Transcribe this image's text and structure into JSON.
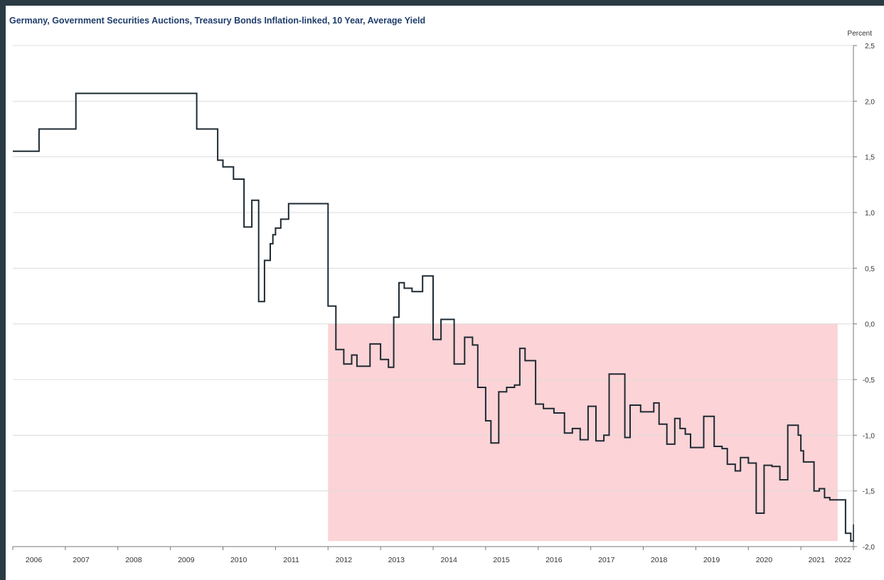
{
  "chart_data": {
    "type": "line",
    "step": true,
    "title": "Germany, Government Securities Auctions, Treasury Bonds Inflation-linked, 10 Year, Average Yield",
    "ylabel": "Percent",
    "xlabel": "",
    "xlim": [
      2006.0,
      2022.0
    ],
    "ylim": [
      -2.0,
      2.5
    ],
    "yticks": [
      2.5,
      2.0,
      1.5,
      1.0,
      0.5,
      0.0,
      -0.5,
      -1.0,
      -1.5,
      -2.0
    ],
    "ytick_labels": [
      "2,5",
      "2,0",
      "1,5",
      "1,0",
      "0,5",
      "0,0",
      "-0,5",
      "-1,0",
      "-1,5",
      "-2,0"
    ],
    "xtick_labels": [
      "2006",
      "2007",
      "2008",
      "2009",
      "2010",
      "2011",
      "2012",
      "2013",
      "2014",
      "2015",
      "2016",
      "2017",
      "2018",
      "2019",
      "2020",
      "2021",
      "2022"
    ],
    "xtick_label_positions": [
      2006.4,
      2007.3,
      2008.3,
      2009.3,
      2010.3,
      2011.3,
      2012.3,
      2013.3,
      2014.3,
      2015.3,
      2016.3,
      2017.3,
      2018.3,
      2019.3,
      2020.3,
      2021.3,
      2021.8
    ],
    "line_color": "#1e2a33",
    "gridlines": true,
    "highlight": {
      "x_range": [
        2012.0,
        2021.7
      ],
      "y_range": [
        -1.95,
        0.0
      ],
      "color": "#fcd3d6"
    },
    "series": [
      {
        "x": [
          2006.0,
          2006.5,
          2007.2,
          2009.5,
          2009.9,
          2010.0,
          2010.2,
          2010.4,
          2010.55,
          2010.68,
          2010.79,
          2010.9,
          2010.95,
          2011.0,
          2011.1,
          2011.25,
          2011.35,
          2012.0,
          2012.15,
          2012.3,
          2012.45,
          2012.55,
          2012.62,
          2012.8,
          2013.0,
          2013.15,
          2013.25,
          2013.35,
          2013.45,
          2013.6,
          2013.8,
          2014.0,
          2014.15,
          2014.4,
          2014.6,
          2014.75,
          2014.85,
          2015.0,
          2015.1,
          2015.25,
          2015.4,
          2015.55,
          2015.65,
          2015.75,
          2015.95,
          2016.1,
          2016.3,
          2016.5,
          2016.65,
          2016.8,
          2016.95,
          2017.1,
          2017.25,
          2017.35,
          2017.45,
          2017.65,
          2017.75,
          2017.85,
          2017.95,
          2018.2,
          2018.3,
          2018.45,
          2018.6,
          2018.7,
          2018.8,
          2018.9,
          2019.0,
          2019.15,
          2019.35,
          2019.5,
          2019.6,
          2019.75,
          2019.85,
          2020.0,
          2020.1,
          2020.15,
          2020.3,
          2020.45,
          2020.6,
          2020.75,
          2020.95,
          2021.0,
          2021.05,
          2021.25,
          2021.35,
          2021.45,
          2021.55,
          2021.85,
          2021.95,
          2022.0
        ],
        "y": [
          1.55,
          1.75,
          2.07,
          1.75,
          1.47,
          1.41,
          1.3,
          0.87,
          1.11,
          0.2,
          0.57,
          0.72,
          0.8,
          0.86,
          0.94,
          1.08,
          1.08,
          0.16,
          -0.23,
          -0.36,
          -0.28,
          -0.38,
          -0.38,
          -0.18,
          -0.32,
          -0.39,
          0.06,
          0.37,
          0.32,
          0.29,
          0.43,
          -0.14,
          0.04,
          -0.36,
          -0.12,
          -0.19,
          -0.57,
          -0.87,
          -1.07,
          -0.61,
          -0.57,
          -0.55,
          -0.22,
          -0.33,
          -0.72,
          -0.76,
          -0.8,
          -0.98,
          -0.94,
          -1.04,
          -0.74,
          -1.05,
          -1.0,
          -0.45,
          -0.45,
          -1.02,
          -0.73,
          -0.73,
          -0.79,
          -0.71,
          -0.9,
          -1.08,
          -0.85,
          -0.94,
          -0.99,
          -1.11,
          -1.11,
          -0.83,
          -1.1,
          -1.12,
          -1.26,
          -1.32,
          -1.2,
          -1.25,
          -1.25,
          -1.7,
          -1.27,
          -1.28,
          -1.4,
          -0.91,
          -1.0,
          -1.14,
          -1.24,
          -1.5,
          -1.48,
          -1.56,
          -1.58,
          -1.88,
          -1.95,
          -1.8
        ]
      }
    ]
  }
}
